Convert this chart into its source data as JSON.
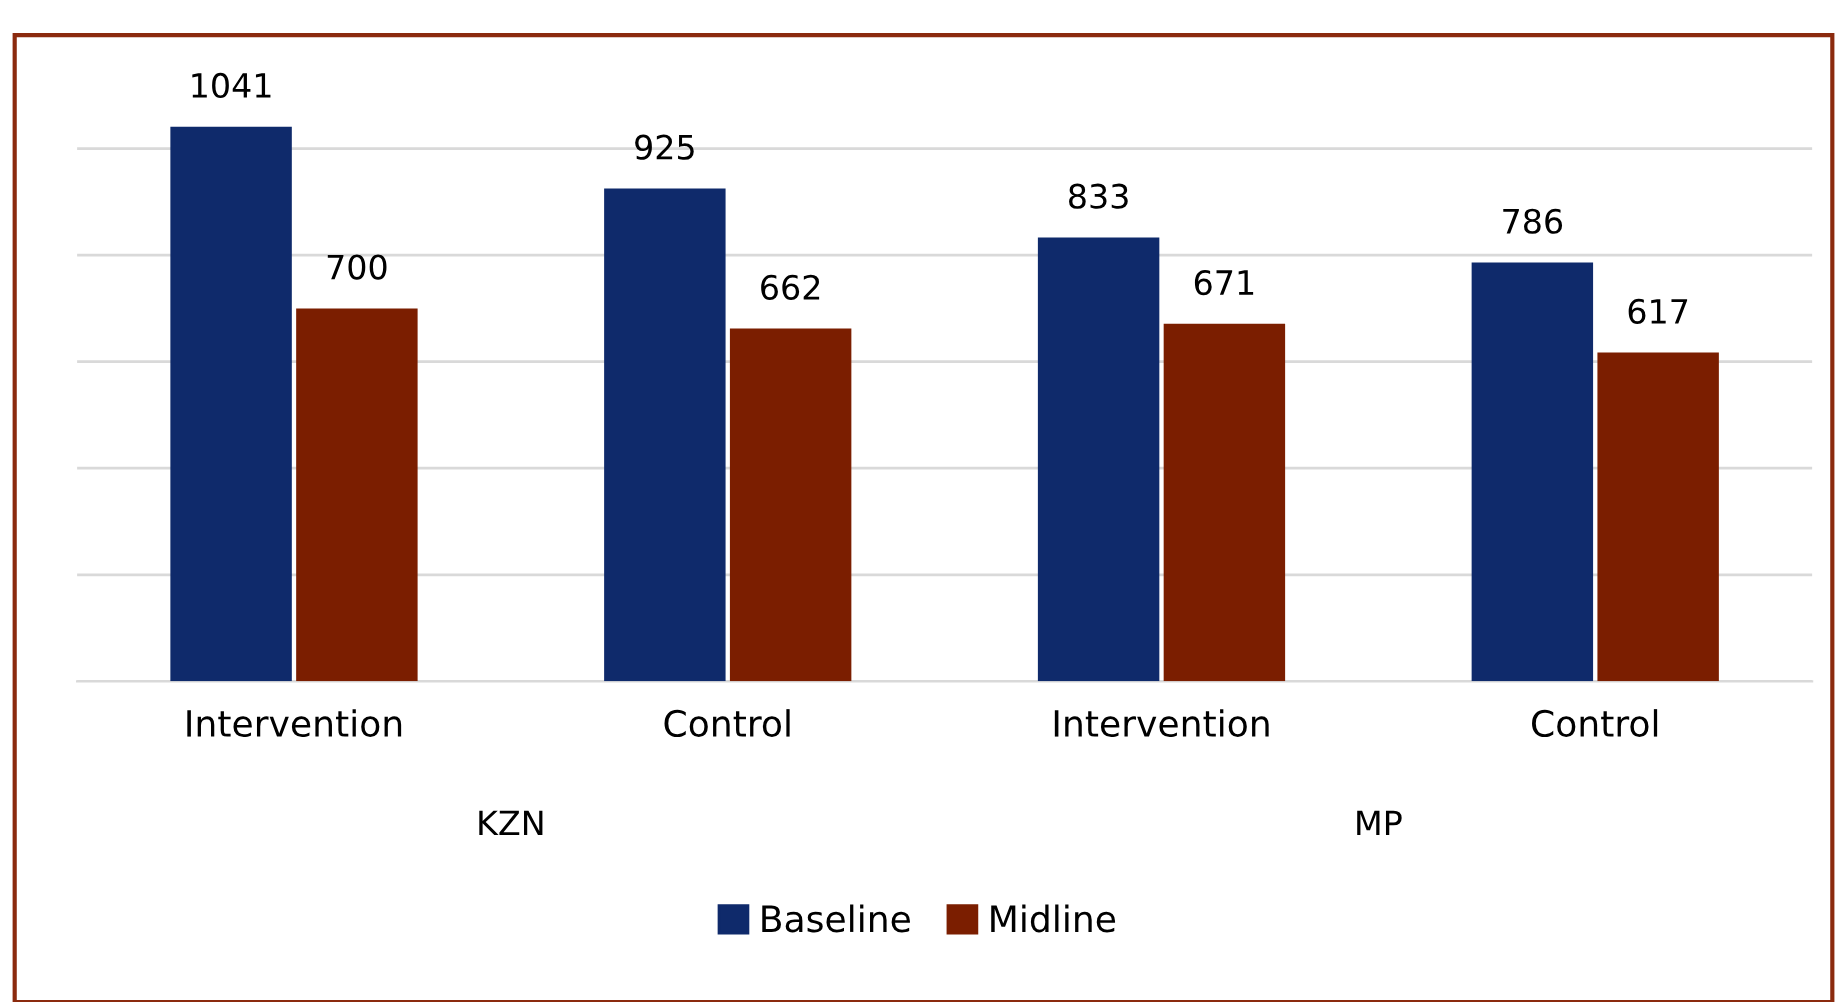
{
  "chart_data": {
    "type": "bar",
    "categories": [
      "Intervention",
      "Control",
      "Intervention",
      "Control"
    ],
    "series": [
      {
        "name": "Baseline",
        "color": "#0f2a6b",
        "values": [
          1041,
          925,
          833,
          786
        ]
      },
      {
        "name": "Midline",
        "color": "#7b1e00",
        "values": [
          700,
          662,
          671,
          617
        ]
      }
    ],
    "annotations": [
      "KZN",
      "MP"
    ],
    "yticks": [
      {
        "value": 0,
        "label": null
      },
      {
        "value": 200,
        "label": null
      },
      {
        "value": 400,
        "label": null
      },
      {
        "value": 600,
        "label": null
      },
      {
        "value": 800,
        "label": null
      },
      {
        "value": 1000,
        "label": null
      }
    ],
    "tick_labels": "x",
    "grid": "y",
    "legend": "bottom",
    "data_labels": true
  }
}
